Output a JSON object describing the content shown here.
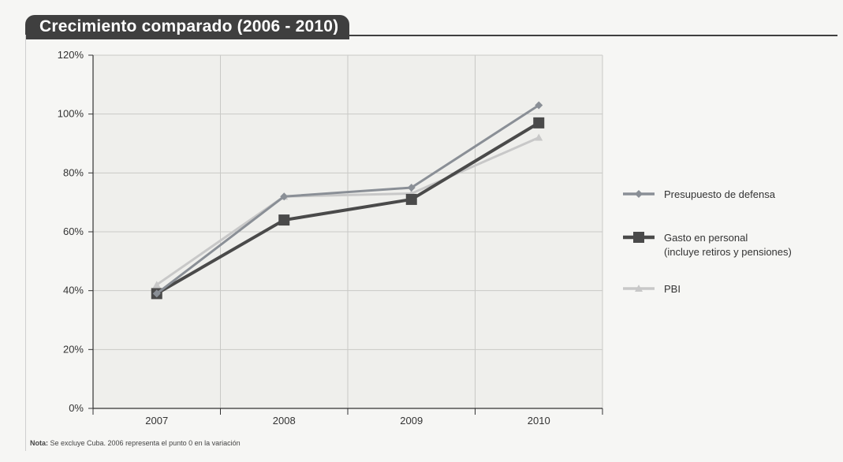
{
  "chart_data": {
    "type": "line",
    "title": "Crecimiento comparado (2006 - 2010)",
    "categories": [
      "2007",
      "2008",
      "2009",
      "2010"
    ],
    "ylim": [
      0,
      120
    ],
    "yticks": [
      "0%",
      "20%",
      "40%",
      "60%",
      "80%",
      "100%",
      "120%"
    ],
    "grid": true,
    "legend_position": "right",
    "series": [
      {
        "name": "Presupuesto de defensa",
        "values": [
          39,
          72,
          75,
          103
        ],
        "color": "#8a8f96",
        "marker": "diamond"
      },
      {
        "name": "Gasto en personal",
        "name_line2": "(incluye retiros y pensiones)",
        "values": [
          39,
          64,
          71,
          97
        ],
        "color": "#4a4a4a",
        "marker": "square"
      },
      {
        "name": "PBI",
        "values": [
          42,
          72,
          73,
          92
        ],
        "color": "#c8c8c8",
        "marker": "triangle"
      }
    ]
  },
  "note": {
    "label": "Nota:",
    "text": " Se excluye Cuba. 2006 representa el punto 0 en la variación"
  }
}
